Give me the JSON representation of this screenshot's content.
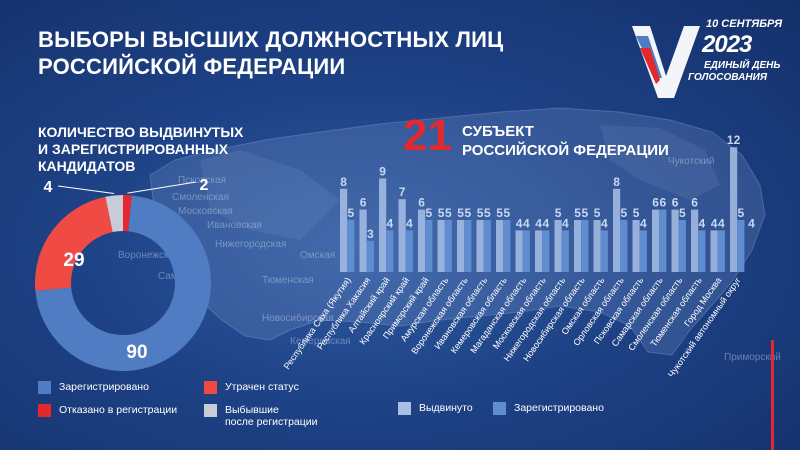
{
  "header": {
    "title_line1": "ВЫБОРЫ ВЫСШИХ ДОЛЖНОСТНЫХ ЛИЦ",
    "title_line2": "РОССИЙСКОЙ ФЕДЕРАЦИИ"
  },
  "logo": {
    "date": "10 СЕНТЯБРЯ",
    "year": "2023",
    "line2": "ЕДИНЫЙ ДЕНЬ",
    "line3": "ГОЛОСОВАНИЯ"
  },
  "left_section": {
    "title_line1": "КОЛИЧЕСТВО ВЫДВИНУТЫХ",
    "title_line2": "И ЗАРЕГИСТРИРОВАННЫХ",
    "title_line3": "КАНДИДАТОВ"
  },
  "right_section": {
    "number": "21",
    "label_line1": "СУБЪЕКТ",
    "label_line2": "РОССИЙСКОЙ ФЕДЕРАЦИИ"
  },
  "map_labels": [
    "Псковская",
    "Смоленская",
    "Московская",
    "Ивановская",
    "Нижегородская",
    "Воронежская",
    "Тюменская",
    "Новосибирская",
    "Омская",
    "Кемеровская",
    "Чукотский",
    "Приморский",
    "Сама"
  ],
  "colors": {
    "registered": "#4f7cc2",
    "lost_status": "#f04a44",
    "refused": "#e3282e",
    "dropped": "#c8ccd6",
    "bar_nominated": "#a8c0e6",
    "bar_registered": "#5f8dd0"
  },
  "chart_data": [
    {
      "type": "pie",
      "categories": [
        "Зарегистрировано",
        "Утрачен статус",
        "Отказано в регистрации",
        "Выбывшие после регистрации"
      ],
      "values": [
        90,
        29,
        2,
        4
      ],
      "labels": [
        "90",
        "29",
        "2",
        "4"
      ],
      "legend": [
        {
          "name": "Зарегистрировано",
          "color": "#4f7cc2"
        },
        {
          "name": "Утрачен статус",
          "color": "#f04a44"
        },
        {
          "name": "Отказано в регистрации",
          "color": "#e3282e"
        },
        {
          "name_line1": "Выбывшие",
          "name_line2": "после регистрации",
          "color": "#c8ccd6"
        }
      ]
    },
    {
      "type": "bar",
      "categories": [
        "Республика Саха (Якутия)",
        "Республика Хакасия",
        "Алтайский край",
        "Красноярский край",
        "Приморский край",
        "Амурская область",
        "Воронежская область",
        "Ивановская область",
        "Кемеровская область",
        "Магаданская область",
        "Московская область",
        "Нижегородская область",
        "Новосибирская область",
        "Омская область",
        "Орловская область",
        "Псковская область",
        "Самарская область",
        "Смоленская область",
        "Тюменская область",
        "Город Москва",
        "Чукотский автономный округ"
      ],
      "series": [
        {
          "name": "Выдвинуто",
          "values": [
            8,
            6,
            9,
            7,
            6,
            5,
            5,
            5,
            5,
            4,
            4,
            5,
            5,
            5,
            8,
            5,
            6,
            6,
            6,
            4,
            12
          ]
        },
        {
          "name": "Зарегистрировано",
          "values": [
            5,
            3,
            4,
            4,
            5,
            5,
            5,
            5,
            5,
            4,
            4,
            4,
            5,
            4,
            5,
            4,
            6,
            5,
            4,
            4,
            5
          ]
        }
      ],
      "last_value": "4",
      "legend": [
        {
          "name": "Выдвинуто",
          "color": "#a8c0e6"
        },
        {
          "name": "Зарегистрировано",
          "color": "#5f8dd0"
        }
      ]
    }
  ]
}
